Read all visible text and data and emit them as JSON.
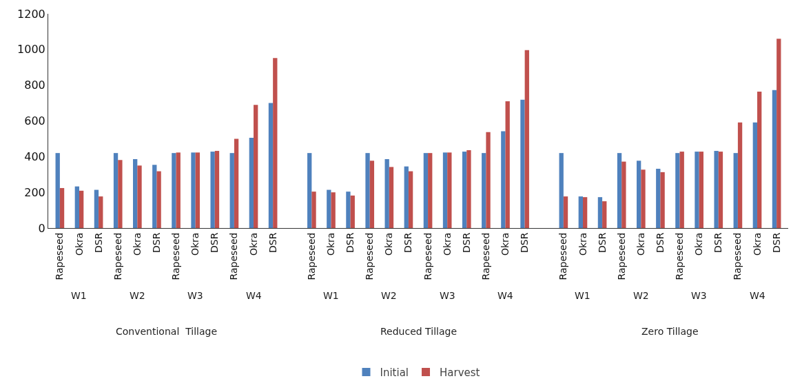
{
  "chart_data": {
    "type": "bar",
    "categories": [
      "Rapeseed",
      "Okra",
      "DSR",
      "Rapeseed",
      "Okra",
      "DSR",
      "Rapeseed",
      "Okra",
      "DSR",
      "Rapeseed",
      "Okra",
      "DSR",
      null,
      "Rapeseed",
      "Okra",
      "DSR",
      "Rapeseed",
      "Okra",
      "DSR",
      "Rapeseed",
      "Okra",
      "DSR",
      "Rapeseed",
      "Okra",
      "DSR",
      null,
      "Rapeseed",
      "Okra",
      "DSR",
      "Rapeseed",
      "Okra",
      "DSR",
      "Rapeseed",
      "Okra",
      "DSR",
      "Rapeseed",
      "Okra",
      "DSR"
    ],
    "series": [
      {
        "name": "Initial",
        "color": "#4f81bd",
        "values": [
          420,
          233,
          214,
          420,
          386,
          354,
          420,
          423,
          428,
          420,
          505,
          700,
          null,
          420,
          214,
          204,
          420,
          386,
          345,
          420,
          423,
          428,
          420,
          542,
          719,
          null,
          420,
          177,
          173,
          420,
          377,
          332,
          420,
          428,
          432,
          420,
          591,
          773
        ]
      },
      {
        "name": "Harvest",
        "color": "#c0504d",
        "values": [
          224,
          209,
          177,
          381,
          350,
          318,
          423,
          423,
          432,
          500,
          690,
          952,
          null,
          204,
          200,
          182,
          377,
          342,
          318,
          420,
          423,
          436,
          537,
          710,
          996,
          null,
          177,
          173,
          150,
          372,
          327,
          313,
          428,
          428,
          428,
          591,
          764,
          1060
        ]
      }
    ],
    "annotations": [
      "W1",
      "W2",
      "W3",
      "W4",
      "W1",
      "W2",
      "W3",
      "W4",
      "W1",
      "W2",
      "W3",
      "W4",
      "Conventional  Tillage",
      "Reduced Tillage",
      "Zero Tillage"
    ],
    "ylim": [
      0,
      1200
    ],
    "yticks": [
      0,
      200,
      400,
      600,
      800,
      1000,
      1200
    ],
    "grid": false,
    "legend": "bottom"
  }
}
